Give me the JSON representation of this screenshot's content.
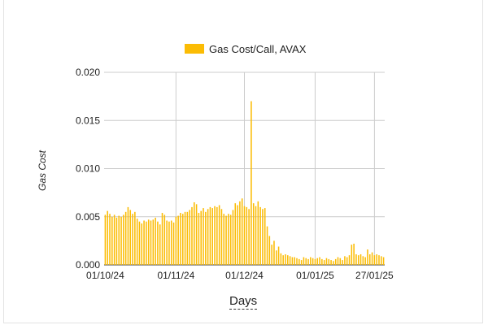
{
  "chart_data": {
    "type": "bar",
    "legend": {
      "label": "Gas Cost/Call, AVAX",
      "position": "top"
    },
    "xlabel": "Days",
    "ylabel": "Gas Cost",
    "ylim": [
      0,
      0.02
    ],
    "yticks": [
      "0.000",
      "0.005",
      "0.010",
      "0.015",
      "0.020"
    ],
    "xticks": [
      {
        "label": "01/10/24",
        "day": 0
      },
      {
        "label": "01/11/24",
        "day": 31
      },
      {
        "label": "01/12/24",
        "day": 61
      },
      {
        "label": "01/01/25",
        "day": 92
      },
      {
        "label": "27/01/25",
        "day": 118
      }
    ],
    "grid": true,
    "color": "#FBBC04",
    "x": [
      "01/10/24",
      "02/10/24",
      "03/10/24",
      "04/10/24",
      "05/10/24",
      "06/10/24",
      "07/10/24",
      "08/10/24",
      "09/10/24",
      "10/10/24",
      "11/10/24",
      "12/10/24",
      "13/10/24",
      "14/10/24",
      "15/10/24",
      "16/10/24",
      "17/10/24",
      "18/10/24",
      "19/10/24",
      "20/10/24",
      "21/10/24",
      "22/10/24",
      "23/10/24",
      "24/10/24",
      "25/10/24",
      "26/10/24",
      "27/10/24",
      "28/10/24",
      "29/10/24",
      "30/10/24",
      "31/10/24",
      "01/11/24",
      "02/11/24",
      "03/11/24",
      "04/11/24",
      "05/11/24",
      "06/11/24",
      "07/11/24",
      "08/11/24",
      "09/11/24",
      "10/11/24",
      "11/11/24",
      "12/11/24",
      "13/11/24",
      "14/11/24",
      "15/11/24",
      "16/11/24",
      "17/11/24",
      "18/11/24",
      "19/11/24",
      "20/11/24",
      "21/11/24",
      "22/11/24",
      "23/11/24",
      "24/11/24",
      "25/11/24",
      "26/11/24",
      "27/11/24",
      "28/11/24",
      "29/11/24",
      "30/11/24",
      "01/12/24",
      "02/12/24",
      "03/12/24",
      "04/12/24",
      "05/12/24",
      "06/12/24",
      "07/12/24",
      "08/12/24",
      "09/12/24",
      "10/12/24",
      "11/12/24",
      "12/12/24",
      "13/12/24",
      "14/12/24",
      "15/12/24",
      "16/12/24",
      "17/12/24",
      "18/12/24",
      "19/12/24",
      "20/12/24",
      "21/12/24",
      "22/12/24",
      "23/12/24",
      "24/12/24",
      "25/12/24",
      "26/12/24",
      "27/12/24",
      "28/12/24",
      "29/12/24",
      "30/12/24",
      "31/12/24",
      "01/01/25",
      "02/01/25",
      "03/01/25",
      "04/01/25",
      "05/01/25",
      "06/01/25",
      "07/01/25",
      "08/01/25",
      "09/01/25",
      "10/01/25",
      "11/01/25",
      "12/01/25",
      "13/01/25",
      "14/01/25",
      "15/01/25",
      "16/01/25",
      "17/01/25",
      "18/01/25",
      "19/01/25",
      "20/01/25",
      "21/01/25",
      "22/01/25",
      "23/01/25",
      "24/01/25",
      "25/01/25",
      "26/01/25",
      "27/01/25",
      "28/01/25",
      "29/01/25",
      "30/01/25",
      "31/01/25"
    ],
    "values": [
      0.0052,
      0.0056,
      0.0053,
      0.005,
      0.0052,
      0.0049,
      0.0051,
      0.005,
      0.0052,
      0.0055,
      0.006,
      0.0057,
      0.0053,
      0.0055,
      0.0048,
      0.0045,
      0.0043,
      0.0046,
      0.0045,
      0.0047,
      0.0046,
      0.0047,
      0.0049,
      0.0045,
      0.0042,
      0.0054,
      0.0052,
      0.0046,
      0.0045,
      0.0046,
      0.0044,
      0.005,
      0.0051,
      0.0054,
      0.0053,
      0.0055,
      0.0055,
      0.0057,
      0.006,
      0.0065,
      0.0063,
      0.0054,
      0.0056,
      0.0059,
      0.0055,
      0.0058,
      0.006,
      0.0059,
      0.0061,
      0.006,
      0.0062,
      0.0058,
      0.0053,
      0.0051,
      0.0053,
      0.0052,
      0.0057,
      0.0064,
      0.0062,
      0.0066,
      0.0069,
      0.0061,
      0.006,
      0.0058,
      0.017,
      0.0064,
      0.0061,
      0.0066,
      0.006,
      0.0058,
      0.0059,
      0.004,
      0.003,
      0.0021,
      0.0025,
      0.0015,
      0.0019,
      0.0012,
      0.001,
      0.0011,
      0.001,
      0.0009,
      0.0008,
      0.0008,
      0.0007,
      0.0006,
      0.0005,
      0.0008,
      0.0007,
      0.0006,
      0.0008,
      0.0007,
      0.0006,
      0.0007,
      0.0008,
      0.0006,
      0.0005,
      0.0007,
      0.0006,
      0.0005,
      0.0004,
      0.0006,
      0.0008,
      0.0007,
      0.0005,
      0.0009,
      0.0008,
      0.001,
      0.0021,
      0.0022,
      0.0011,
      0.001,
      0.0011,
      0.0009,
      0.0008,
      0.0016,
      0.0011,
      0.0013,
      0.001,
      0.0011,
      0.001,
      0.0009,
      0.0008
    ]
  }
}
